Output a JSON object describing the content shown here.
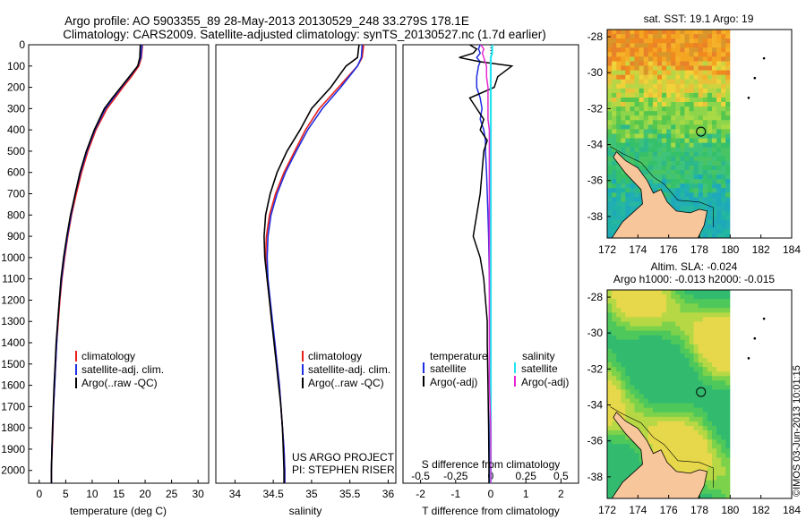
{
  "title": {
    "line1": "Argo profile: AO 5903355_89 28-May-2013 20130529_248 33.279S 178.1E",
    "line2": "Climatology: CARS2009. Satellite-adjusted climatology: synTS_20130527.nc (1.7d earlier)"
  },
  "colors": {
    "clim": "#e8201c",
    "sat": "#1f2ee0",
    "argo": "#000000",
    "sat_sal": "#22e4f0",
    "argo_sal": "#e629d0",
    "land": "#f7c69b"
  },
  "depth_ticks": [
    "0",
    "100",
    "200",
    "300",
    "400",
    "500",
    "600",
    "700",
    "800",
    "900",
    "1000",
    "1100",
    "1200",
    "1300",
    "1400",
    "1500",
    "1600",
    "1700",
    "1800",
    "1900",
    "2000"
  ],
  "chart_data": [
    {
      "type": "line",
      "name": "temperature",
      "xlabel": "temperature (deg C)",
      "xlim": [
        -2,
        32
      ],
      "ylim": [
        2060,
        0
      ],
      "xticks": [
        "0",
        "5",
        "10",
        "15",
        "20",
        "25",
        "30"
      ],
      "legend": [
        "climatology",
        "satellite-adj. clim.",
        "Argo(..raw -QC)"
      ],
      "depth": [
        0,
        60,
        100,
        150,
        200,
        250,
        300,
        400,
        500,
        600,
        700,
        800,
        900,
        1000,
        1100,
        1200,
        1300,
        1400,
        1500,
        1600,
        1700,
        1800,
        1900,
        2000,
        2060
      ],
      "series": [
        {
          "name": "climatology",
          "values": [
            19.5,
            19.3,
            18.8,
            17.4,
            15.8,
            14.3,
            12.8,
            10.7,
            9.2,
            8.0,
            7.0,
            6.1,
            5.4,
            4.8,
            4.3,
            3.9,
            3.6,
            3.3,
            3.1,
            2.9,
            2.7,
            2.6,
            2.45,
            2.3,
            2.3
          ]
        },
        {
          "name": "satellite-adj. clim.",
          "values": [
            19.4,
            19.2,
            18.6,
            17.1,
            15.5,
            14.0,
            12.5,
            10.5,
            9.0,
            7.8,
            6.8,
            6.0,
            5.3,
            4.7,
            4.2,
            3.8,
            3.5,
            3.3,
            3.1,
            2.9,
            2.7,
            2.55,
            2.4,
            2.3,
            2.3
          ]
        },
        {
          "name": "Argo(..raw -QC)",
          "values": [
            19.1,
            19.0,
            18.6,
            17.0,
            15.4,
            13.8,
            12.3,
            10.4,
            8.9,
            7.7,
            6.8,
            5.9,
            5.2,
            4.6,
            4.1,
            3.8,
            3.5,
            3.2,
            3.0,
            2.8,
            2.65,
            2.5,
            2.4,
            2.3,
            2.3
          ]
        }
      ]
    },
    {
      "type": "line",
      "name": "salinity",
      "xlabel": "salinity",
      "xlim": [
        33.75,
        36.1
      ],
      "ylim": [
        2060,
        0
      ],
      "xticks": [
        "34",
        "34.5",
        "35",
        "35.5",
        "36"
      ],
      "legend": [
        "climatology",
        "satellite-adj. clim.",
        "Argo(..raw -QC)"
      ],
      "depth": [
        0,
        60,
        100,
        200,
        300,
        400,
        500,
        600,
        700,
        800,
        900,
        1000,
        1100,
        1200,
        1300,
        1400,
        1500,
        1600,
        1700,
        1800,
        1900,
        2000,
        2060
      ],
      "series": [
        {
          "name": "climatology",
          "values": [
            35.68,
            35.66,
            35.6,
            35.35,
            35.1,
            34.92,
            34.78,
            34.64,
            34.53,
            34.45,
            34.41,
            34.4,
            34.42,
            34.45,
            34.48,
            34.52,
            34.55,
            34.58,
            34.6,
            34.62,
            34.64,
            34.65,
            34.65
          ]
        },
        {
          "name": "satellite-adj. clim.",
          "values": [
            35.66,
            35.65,
            35.6,
            35.38,
            35.14,
            34.95,
            34.8,
            34.66,
            34.55,
            34.47,
            34.43,
            34.42,
            34.43,
            34.46,
            34.49,
            34.52,
            34.55,
            34.58,
            34.6,
            34.62,
            34.64,
            34.65,
            34.65
          ]
        },
        {
          "name": "Argo(..raw -QC)",
          "values": [
            35.62,
            35.6,
            35.45,
            35.25,
            35.0,
            34.85,
            34.68,
            34.55,
            34.46,
            34.4,
            34.38,
            34.39,
            34.42,
            34.45,
            34.48,
            34.51,
            34.54,
            34.57,
            34.6,
            34.62,
            34.63,
            34.64,
            34.64
          ]
        }
      ],
      "credit": [
        "US ARGO PROJECT",
        "PI: STEPHEN RISER"
      ]
    },
    {
      "type": "line",
      "name": "difference",
      "xlabel": "T difference from climatology",
      "toplabel": "S difference from climatology",
      "xlim": [
        -2.5,
        2.5
      ],
      "s_scale": 4,
      "ylim": [
        2060,
        0
      ],
      "xticks": [
        "-2",
        "-1",
        "0",
        "1",
        "2"
      ],
      "sticks": [
        "-0.5",
        "-0.25",
        "0",
        "0.25",
        "0.5"
      ],
      "legend": {
        "temperature": "temperature",
        "salinity": "salinity",
        "t_sat": "satellite",
        "t_argo": "Argo(-adj)",
        "s_sat": "satellite",
        "s_argo": "Argo(-adj)"
      },
      "depth": [
        0,
        20,
        40,
        60,
        80,
        100,
        150,
        200,
        250,
        300,
        350,
        400,
        450,
        500,
        600,
        700,
        800,
        900,
        1000,
        1100,
        1200,
        1300,
        1400,
        1600,
        1800,
        2000,
        2060
      ],
      "series": [
        {
          "name": "T satellite",
          "values": [
            -0.3,
            -0.35,
            -0.3,
            -0.4,
            -0.3,
            -0.35,
            -0.4,
            -0.4,
            -0.3,
            -0.25,
            -0.3,
            -0.2,
            -0.15,
            -0.15,
            -0.12,
            -0.1,
            -0.08,
            -0.06,
            -0.05,
            -0.04,
            -0.03,
            -0.03,
            -0.02,
            -0.02,
            -0.02,
            -0.02,
            -0.02
          ]
        },
        {
          "name": "T Argo(-adj)",
          "values": [
            -0.6,
            -0.4,
            -0.5,
            -0.9,
            -0.3,
            0.6,
            0.2,
            0.1,
            -0.6,
            -0.4,
            -0.2,
            -0.3,
            -0.1,
            -0.2,
            -0.25,
            -0.3,
            -0.4,
            -0.5,
            -0.3,
            -0.2,
            -0.15,
            -0.1,
            -0.1,
            -0.08,
            -0.06,
            -0.05,
            -0.05
          ]
        },
        {
          "name": "S satellite",
          "values": [
            0.01,
            0.01,
            0.01,
            0.0,
            0.0,
            0.0,
            0.0,
            0.0,
            0.0,
            0.0,
            0.0,
            0.0,
            0.0,
            0.0,
            0.0,
            0.0,
            0.0,
            0.0,
            0.0,
            0.0,
            0.0,
            0.0,
            0.0,
            0.0,
            0.0,
            0.0,
            0.0
          ]
        },
        {
          "name": "S Argo(-adj)",
          "values": [
            -0.07,
            -0.05,
            -0.06,
            -0.05,
            -0.04,
            -0.03,
            -0.03,
            -0.02,
            -0.02,
            -0.02,
            -0.02,
            -0.01,
            -0.01,
            -0.01,
            -0.01,
            -0.01,
            -0.01,
            -0.01,
            -0.01,
            -0.01,
            -0.01,
            -0.01,
            -0.01,
            -0.01,
            0.0,
            0.0,
            0.0
          ]
        }
      ]
    },
    {
      "type": "heatmap",
      "name": "sst-map",
      "title": "sat. SST: 19.1 Argo: 19",
      "xlim": [
        172,
        184
      ],
      "ylim": [
        -39.2,
        -27.6
      ],
      "xticks": [
        "172",
        "174",
        "176",
        "178",
        "180",
        "182",
        "184"
      ],
      "yticks": [
        "-28",
        "-30",
        "-32",
        "-34",
        "-36",
        "-38"
      ],
      "marker": {
        "lon": 178.1,
        "lat": -33.279
      }
    },
    {
      "type": "heatmap",
      "name": "sla-map",
      "title": "Altim. SLA: -0.024",
      "subtitle": "Argo h1000: -0.013 h2000: -0.015",
      "xlim": [
        172,
        184
      ],
      "ylim": [
        -39.2,
        -27.6
      ],
      "xticks": [
        "172",
        "174",
        "176",
        "178",
        "180",
        "182",
        "184"
      ],
      "yticks": [
        "-28",
        "-30",
        "-32",
        "-34",
        "-36",
        "-38"
      ],
      "marker": {
        "lon": 178.1,
        "lat": -33.279
      }
    }
  ],
  "imos_stamp": "©IMOS 03-Jun-2013 10:01:15"
}
